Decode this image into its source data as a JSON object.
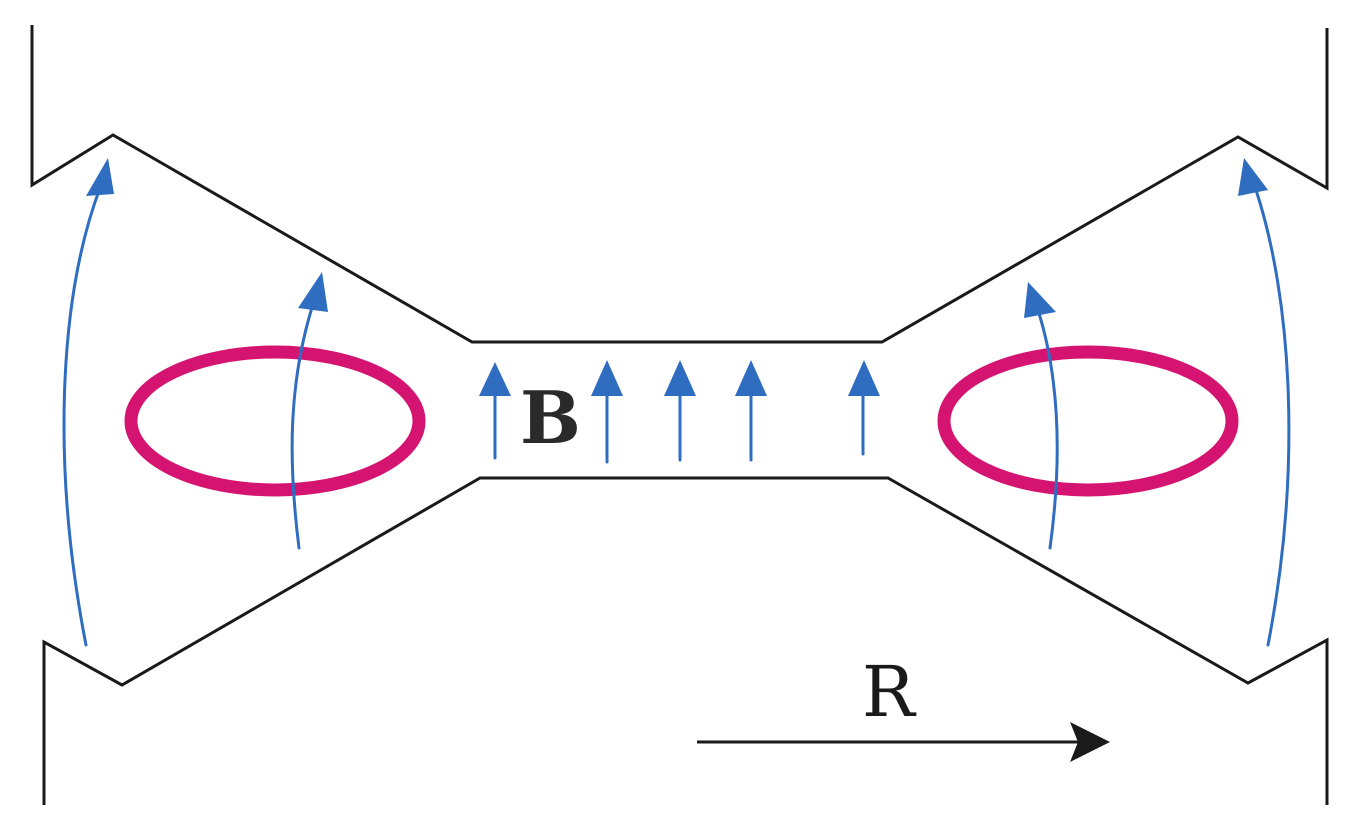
{
  "labels": {
    "field": "B",
    "radial_axis": "R"
  },
  "colors": {
    "outline": "#1a1a1a",
    "field_lines": "#2f6dc0",
    "current_loops": "#d41470"
  }
}
